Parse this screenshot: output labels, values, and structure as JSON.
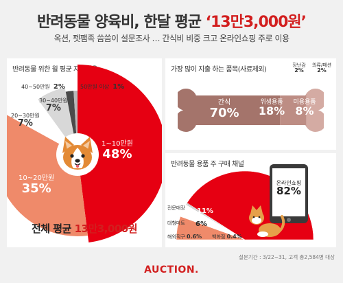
{
  "header": {
    "title_prefix": "반려동물 양육비, 한달 평균 ",
    "title_highlight": "‘13만3,000원’",
    "subtitle": "옥션, 펫팸족 씀씀이 설문조사 … 간식비 비중 크고 온라인쇼핑 주로 이용"
  },
  "colors": {
    "red": "#e60012",
    "salmon": "#ef8a6a",
    "light_gray": "#d8d8d8",
    "dark_gray": "#4a4a4a",
    "bone": "#a4746b",
    "bone_mid": "#bd8d84",
    "bone_light": "#d4aba3",
    "dog_orange": "#e38a35",
    "cat_orange": "#e6a04a"
  },
  "chart_data": [
    {
      "type": "pie",
      "title": "반려동물 위한 월 평균 지출비용",
      "slices": [
        {
          "label": "1~10만원",
          "value": 48,
          "value_label": "48%"
        },
        {
          "label": "10~20만원",
          "value": 35,
          "value_label": "35%"
        },
        {
          "label": "20~30만원",
          "value": 7,
          "value_label": "7%"
        },
        {
          "label": "30~40만원",
          "value": 7,
          "value_label": "7%"
        },
        {
          "label": "40~50만원",
          "value": 2,
          "value_label": "2%"
        },
        {
          "label": "50만원 이상",
          "value": 1,
          "value_label": "1%"
        }
      ],
      "summary_prefix": "전체 평균 ",
      "summary_value": "13만3,000원"
    },
    {
      "type": "bar",
      "title": "가장 많이 지출 하는 품목(사료제외)",
      "items": [
        {
          "label": "간식",
          "value": 70,
          "value_label": "70%"
        },
        {
          "label": "위생용품",
          "value": 18,
          "value_label": "18%"
        },
        {
          "label": "미용용품",
          "value": 8,
          "value_label": "8%"
        },
        {
          "label": "장난감",
          "value": 2,
          "value_label": "2%"
        },
        {
          "label": "의류/패션",
          "value": 2,
          "value_label": "2%"
        }
      ]
    },
    {
      "type": "pie",
      "title": "반려동물 용품 주 구매 채널",
      "slices": [
        {
          "label": "온라인쇼핑",
          "value": 82,
          "value_label": "82%"
        },
        {
          "label": "전문매장",
          "value": 11,
          "value_label": "11%"
        },
        {
          "label": "대형마트",
          "value": 6,
          "value_label": "6%"
        },
        {
          "label": "해외직구",
          "value": 0.6,
          "value_label": "0.6%"
        },
        {
          "label": "백화점",
          "value": 0.4,
          "value_label": "0.4%"
        }
      ]
    }
  ],
  "footer": {
    "note": "설문기간 : 3/22~31, 고객 총2,584명 대상",
    "logo": "AUCTION."
  }
}
